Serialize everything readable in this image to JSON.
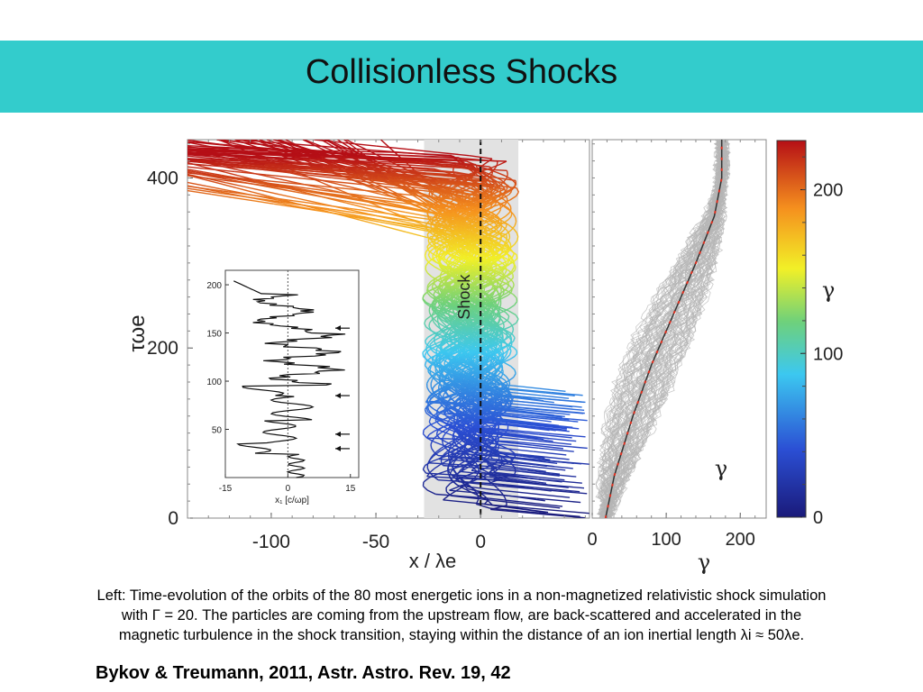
{
  "slide": {
    "title": "Collisionless Shocks",
    "caption_lines": [
      "Left: Time-evolution of the orbits of the 80 most energetic ions in a non-magnetized  relativistic shock simulation",
      "with Γ = 20. The particles are coming from the upstream  flow,  are back-scattered and accelerated  in the",
      "magnetic turbulence in the shock  transition,  staying within the distance of an ion inertial length λi ≈ 50λe."
    ],
    "reference": "Bykov & Treumann, 2011, Astr. Astro. Rev. 19, 42",
    "accent_color": "#33cccc"
  },
  "chart_data": [
    {
      "type": "line",
      "panel": "left",
      "xlabel": "x / λe",
      "ylabel": "τωe",
      "xlim": [
        -140,
        52
      ],
      "ylim": [
        0,
        445
      ],
      "x_ticks": [
        -100,
        -50,
        0
      ],
      "y_ticks": [
        0,
        200,
        400
      ],
      "shaded_region_x": [
        -27,
        18
      ],
      "annotation": "Shock",
      "shock_x": 0,
      "series_count": 80
    },
    {
      "type": "line",
      "panel": "left-inset",
      "xlabel": "x₁ [c/ωp]",
      "xlim": [
        -15,
        17
      ],
      "ylim": [
        0,
        215
      ],
      "x_ticks": [
        -15,
        0,
        15
      ],
      "y_ticks": [
        50,
        100,
        150,
        200
      ],
      "arrow_levels": [
        155,
        85,
        45,
        30
      ]
    },
    {
      "type": "line",
      "panel": "right",
      "xlabel": "γ",
      "annotation": "γ",
      "xlim": [
        0,
        235
      ],
      "ylim": [
        0,
        445
      ],
      "x_ticks": [
        0,
        100,
        200
      ],
      "mean_curve": [
        [
          18,
          0
        ],
        [
          30,
          50
        ],
        [
          55,
          120
        ],
        [
          80,
          180
        ],
        [
          110,
          240
        ],
        [
          140,
          300
        ],
        [
          165,
          355
        ],
        [
          175,
          400
        ],
        [
          175,
          445
        ]
      ]
    },
    {
      "type": "heatmap",
      "panel": "colorbar",
      "label": "γ",
      "range": [
        0,
        230
      ],
      "ticks": [
        0,
        100,
        200
      ]
    }
  ]
}
